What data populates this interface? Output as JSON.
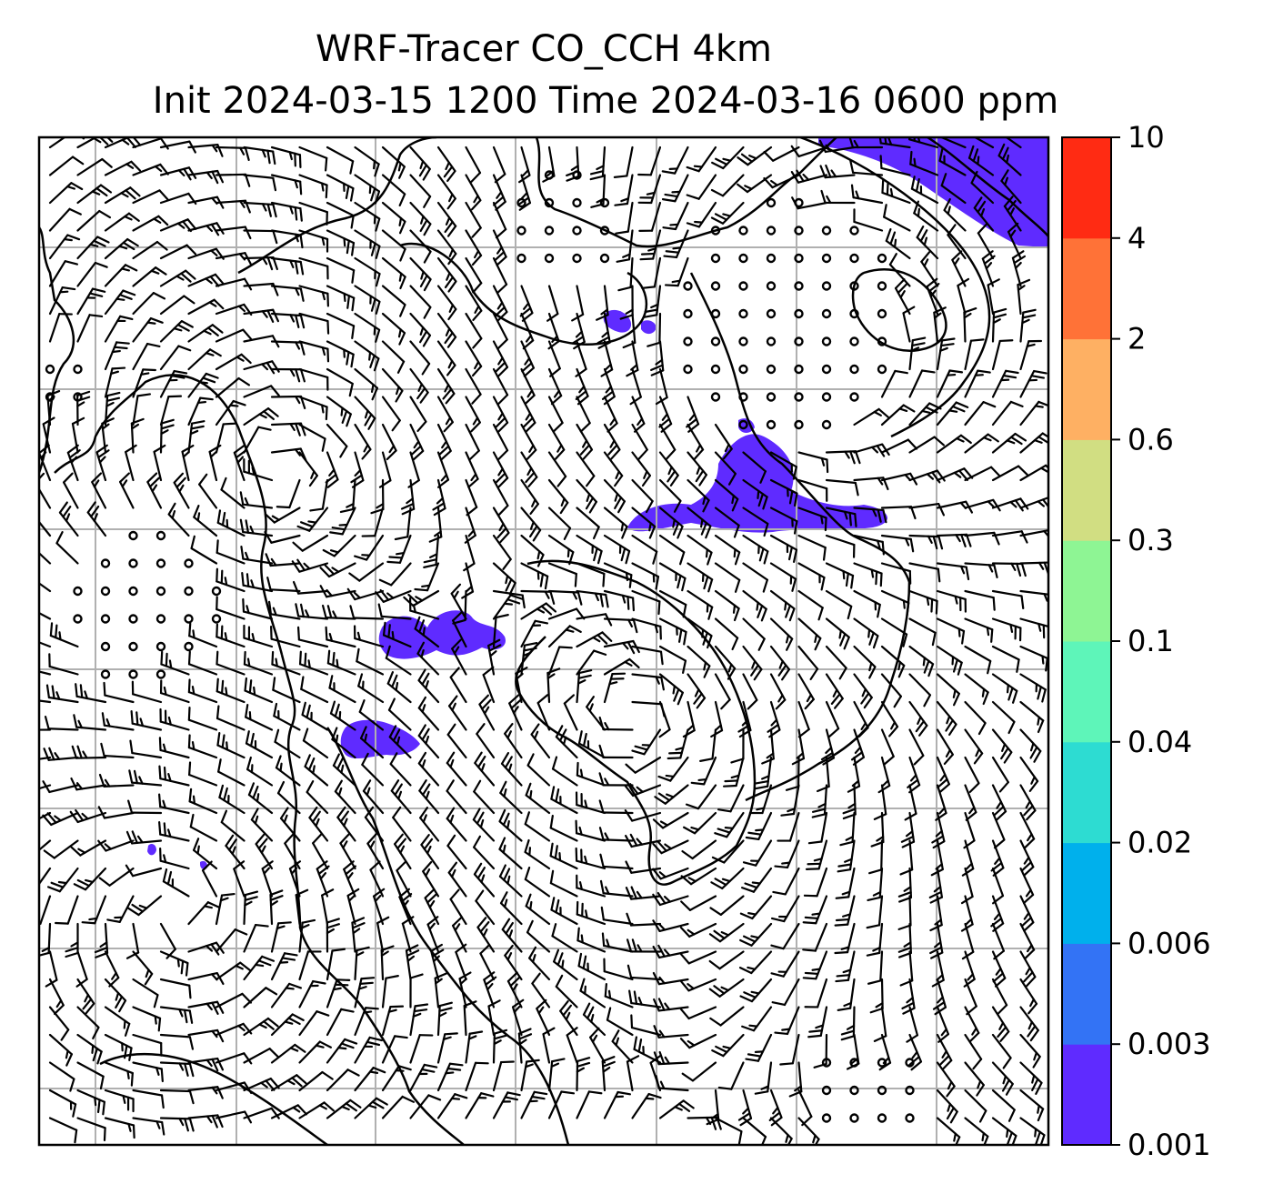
{
  "figure": {
    "title_line1": "WRF-Tracer CO_CCH 4km",
    "title_line2": "Init 2024-03-15 1200 Time 2024-03-16 0600 ppm"
  },
  "colorbar": {
    "tick_labels": [
      "0.001",
      "0.003",
      "0.006",
      "0.02",
      "0.04",
      "0.1",
      "0.3",
      "0.6",
      "2",
      "4",
      "10"
    ],
    "band_colors": [
      "#5f2bff",
      "#3373f5",
      "#00b0ec",
      "#2ddcd2",
      "#5ef5b9",
      "#8ef594",
      "#d1de82",
      "#feb063",
      "#ff7237",
      "#ff2b13"
    ]
  },
  "chart_data": {
    "type": "map",
    "variable": "CO_CCH tracer",
    "units": "ppm",
    "contour_levels": [
      0.001,
      0.003,
      0.006,
      0.02,
      0.04,
      0.1,
      0.3,
      0.6,
      2,
      4,
      10
    ],
    "overlay": "wind barbs (calm winds shown as circles)",
    "grid": true
  }
}
